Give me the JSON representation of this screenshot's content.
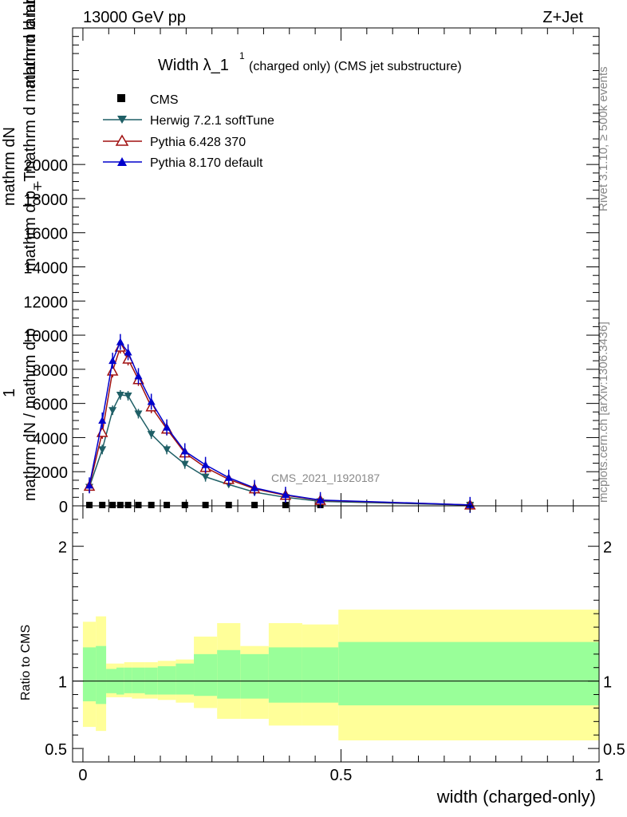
{
  "header": {
    "energy": "13000 GeV pp",
    "process": "Z+Jet"
  },
  "side": {
    "rivet": "Rivet 3.1.10, ≥ 500k events",
    "mcplots": "mcplots.cern.ch [arXiv:1306.3436]"
  },
  "colors": {
    "cms": "#000000",
    "herwig": "#1f5f66",
    "pythia6": "#a01010",
    "pythia8": "#0000cc",
    "band_stat": "#99ff99",
    "band_total": "#ffff99"
  },
  "chart_data": [
    {
      "type": "line",
      "title_main": "Width λ_1",
      "title_sup": "1",
      "title_rest": "(charged only) (CMS jet substructure)",
      "watermark": "CMS_2021_I1920187",
      "ylabel_lines": [
        "1",
        "mathrm dN / mathrm d p",
        "mathrm d p_T",
        "mathrm d mathrm d lambda",
        "mathrm dN",
        "mathrm d lambda"
      ],
      "ylabel_sub": "T",
      "xlim": [
        -0.02,
        1.0
      ],
      "ylim": [
        0,
        28000
      ],
      "yticks": [
        0,
        2000,
        4000,
        6000,
        8000,
        10000,
        12000,
        14000,
        16000,
        18000,
        20000
      ],
      "ytick_labels": [
        "0",
        "2000",
        "4000",
        "6000",
        "8000",
        "10000",
        "12000",
        "14000",
        "16000",
        "18000",
        "20000"
      ],
      "legend": [
        "CMS",
        "Herwig 7.2.1 softTune",
        "Pythia 6.428 370",
        "Pythia 8.170 default"
      ],
      "series": [
        {
          "name": "CMS",
          "color_key": "cms",
          "marker": "square",
          "x": [
            0.0125,
            0.0375,
            0.0575,
            0.0725,
            0.0875,
            0.1075,
            0.1325,
            0.1625,
            0.1975,
            0.2375,
            0.2825,
            0.3325,
            0.3925,
            0.46,
            0.75
          ],
          "y": [
            50,
            50,
            50,
            50,
            50,
            50,
            50,
            50,
            50,
            50,
            50,
            50,
            50,
            50,
            50
          ]
        },
        {
          "name": "Herwig 7.2.1 softTune",
          "color_key": "herwig",
          "marker": "triangle-down",
          "x": [
            0.0125,
            0.0375,
            0.0575,
            0.0725,
            0.0875,
            0.1075,
            0.1325,
            0.1625,
            0.1975,
            0.2375,
            0.2825,
            0.3325,
            0.3925,
            0.46,
            0.75
          ],
          "y": [
            1100,
            3300,
            5600,
            6500,
            6450,
            5400,
            4200,
            3300,
            2450,
            1700,
            1250,
            800,
            500,
            260,
            40
          ]
        },
        {
          "name": "Pythia 6.428 370",
          "color_key": "pythia6",
          "marker": "triangle-open",
          "x": [
            0.0125,
            0.0375,
            0.0575,
            0.0725,
            0.0875,
            0.1075,
            0.1325,
            0.1625,
            0.1975,
            0.2375,
            0.2825,
            0.3325,
            0.3925,
            0.46,
            0.75
          ],
          "y": [
            1150,
            4300,
            7900,
            9300,
            8600,
            7400,
            5800,
            4500,
            3100,
            2250,
            1550,
            1000,
            620,
            320,
            50
          ]
        },
        {
          "name": "Pythia 8.170 default",
          "color_key": "pythia8",
          "marker": "triangle-up",
          "x": [
            0.0125,
            0.0375,
            0.0575,
            0.0725,
            0.0875,
            0.1075,
            0.1325,
            0.1625,
            0.1975,
            0.2375,
            0.2825,
            0.3325,
            0.3925,
            0.46,
            0.75
          ],
          "y": [
            1200,
            5000,
            8500,
            9600,
            9000,
            7600,
            6100,
            4600,
            3200,
            2400,
            1650,
            1050,
            650,
            340,
            55
          ]
        }
      ]
    },
    {
      "type": "area",
      "ylabel": "Ratio to CMS",
      "xlabel": "width (charged-only)",
      "xlim": [
        -0.02,
        1.0
      ],
      "ylim": [
        0.4,
        2.3
      ],
      "yticks": [
        0.5,
        1,
        2
      ],
      "ytick_labels": [
        "0.5",
        "1",
        "2"
      ],
      "xticks": [
        0,
        0.5,
        1
      ],
      "xtick_labels": [
        "0",
        "0.5",
        "1"
      ],
      "reference": 1.0,
      "bins": [
        0.0,
        0.025,
        0.045,
        0.065,
        0.08,
        0.095,
        0.12,
        0.145,
        0.18,
        0.215,
        0.26,
        0.305,
        0.36,
        0.425,
        0.495,
        1.0
      ],
      "stat_low": [
        0.85,
        0.83,
        0.91,
        0.9,
        0.91,
        0.91,
        0.9,
        0.9,
        0.9,
        0.89,
        0.87,
        0.87,
        0.84,
        0.84,
        0.82
      ],
      "stat_high": [
        1.25,
        1.26,
        1.09,
        1.1,
        1.1,
        1.1,
        1.1,
        1.11,
        1.13,
        1.2,
        1.23,
        1.2,
        1.25,
        1.25,
        1.29
      ],
      "tot_low": [
        0.66,
        0.63,
        0.88,
        0.88,
        0.88,
        0.87,
        0.87,
        0.86,
        0.84,
        0.8,
        0.72,
        0.72,
        0.67,
        0.67,
        0.56
      ],
      "tot_high": [
        1.44,
        1.48,
        1.13,
        1.13,
        1.14,
        1.14,
        1.14,
        1.15,
        1.16,
        1.33,
        1.43,
        1.26,
        1.43,
        1.42,
        1.53
      ]
    }
  ]
}
